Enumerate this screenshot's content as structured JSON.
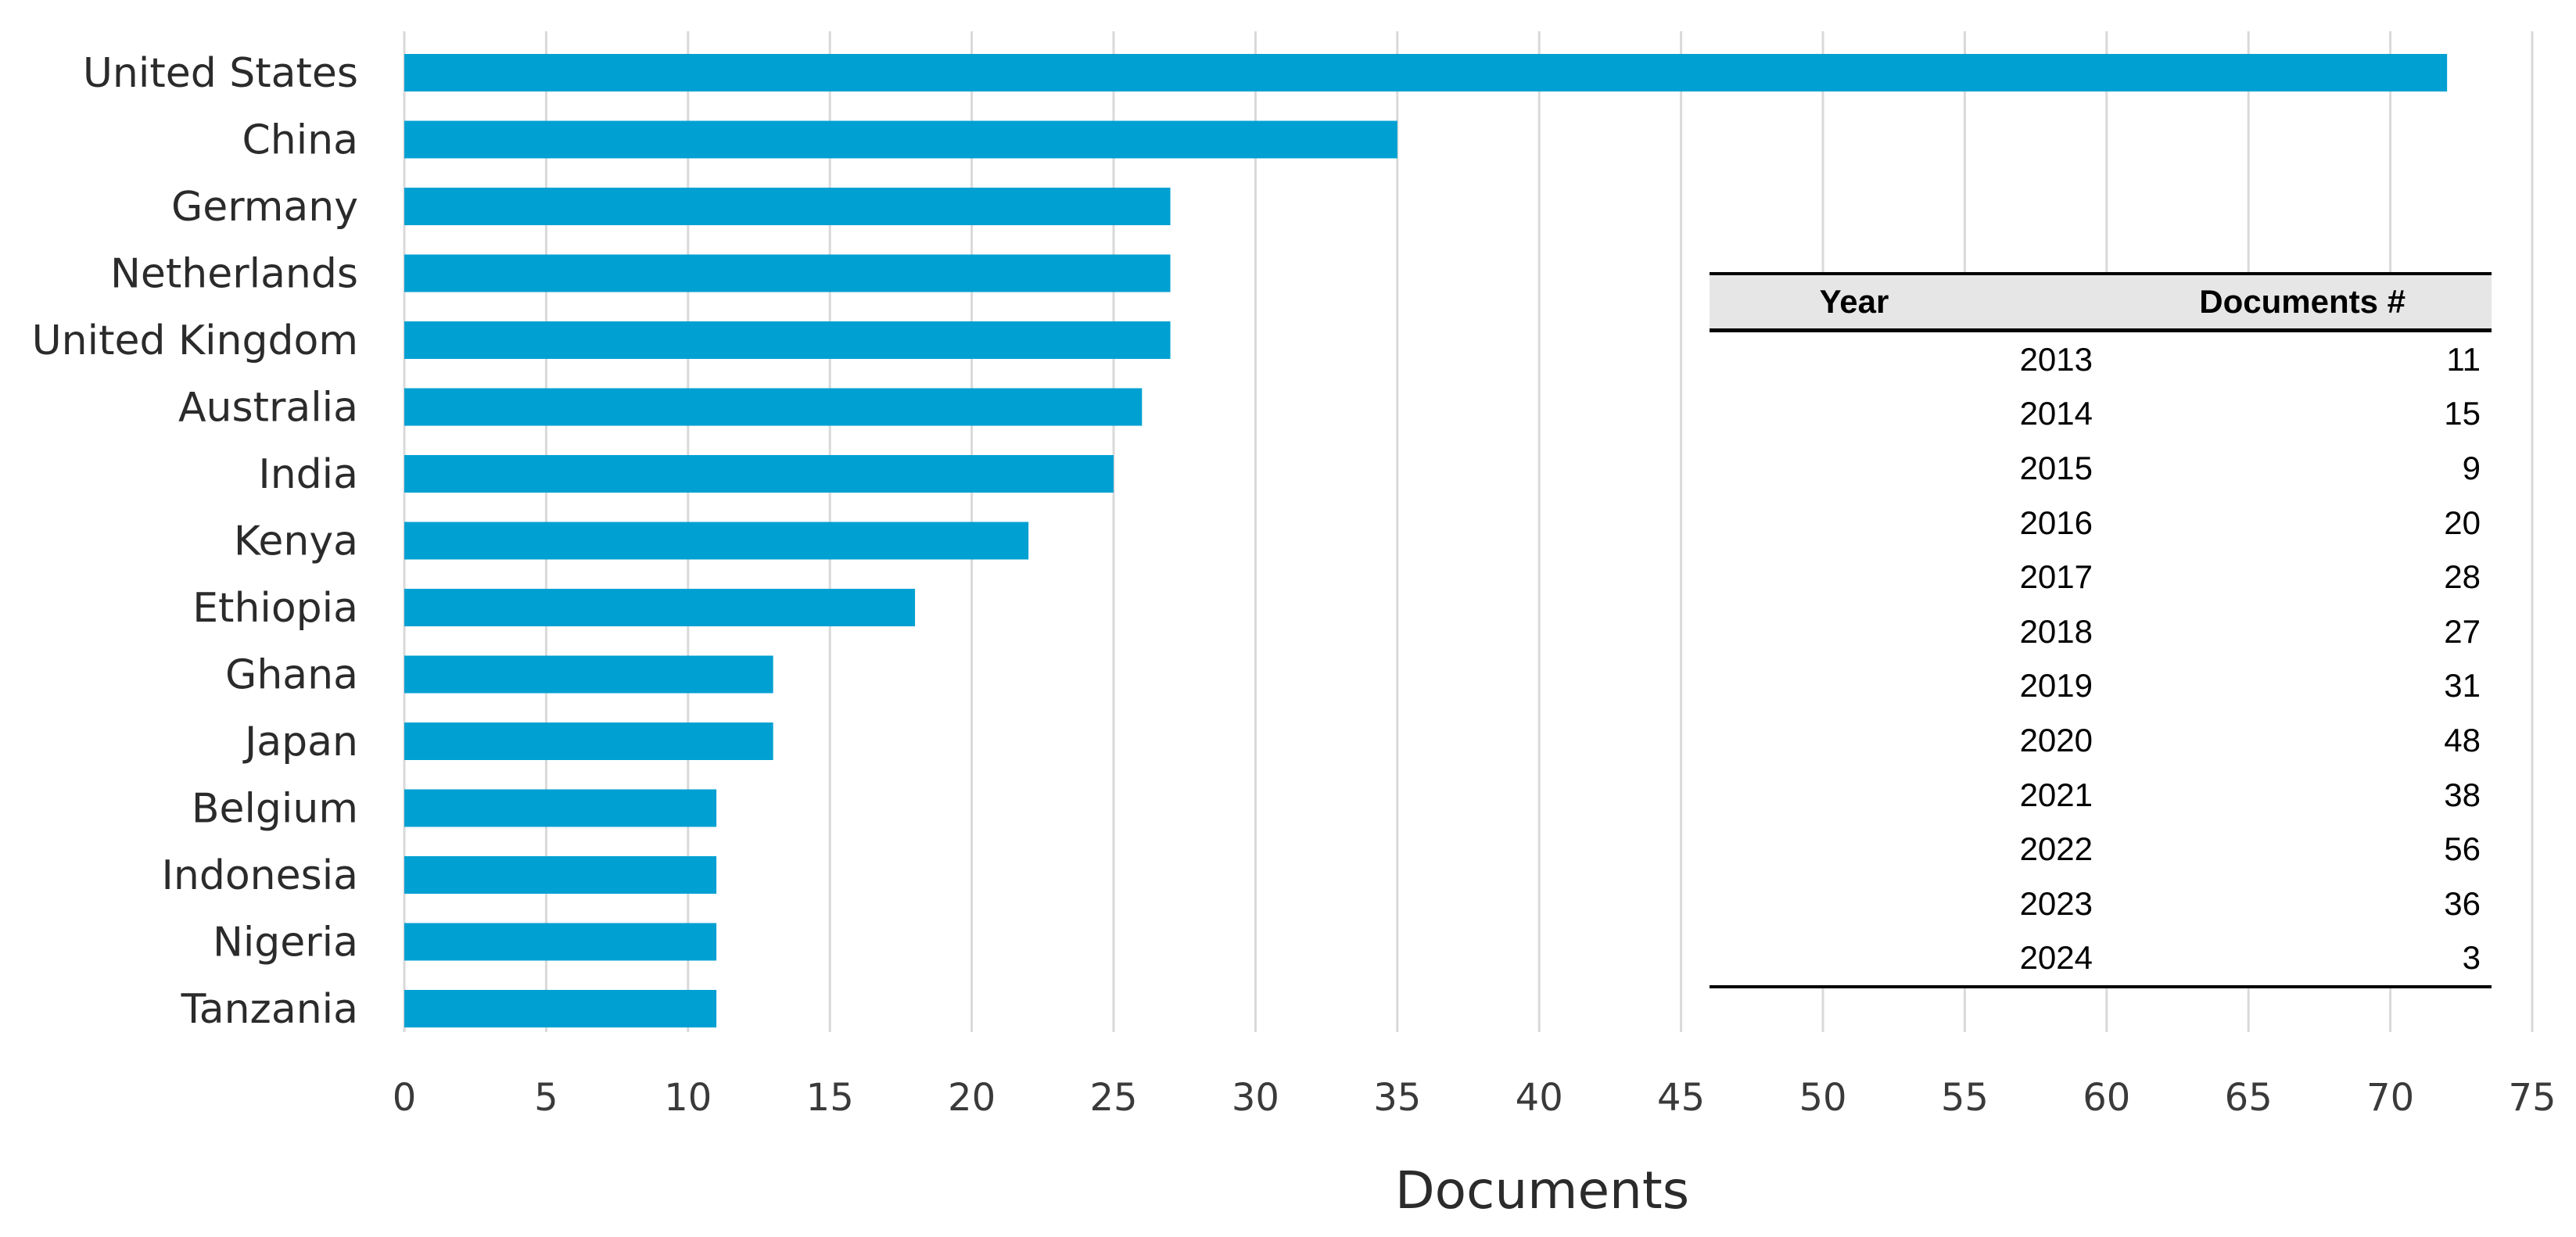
{
  "colors": {
    "bar": "#00A0D2",
    "grid": "#d9d9d9",
    "text": "#2b2b2b",
    "table_header_bg": "#e6e6e6"
  },
  "chart_data": {
    "type": "bar",
    "orientation": "horizontal",
    "categories": [
      "United States",
      "China",
      "Germany",
      "Netherlands",
      "United Kingdom",
      "Australia",
      "India",
      "Kenya",
      "Ethiopia",
      "Ghana",
      "Japan",
      "Belgium",
      "Indonesia",
      "Nigeria",
      "Tanzania"
    ],
    "values": [
      72,
      35,
      27,
      27,
      27,
      26,
      25,
      22,
      18,
      13,
      13,
      11,
      11,
      11,
      11
    ],
    "title": "",
    "xlabel": "Documents",
    "ylabel": "",
    "xlim": [
      0,
      75
    ],
    "xticks": [
      0,
      5,
      10,
      15,
      20,
      25,
      30,
      35,
      40,
      45,
      50,
      55,
      60,
      65,
      70,
      75
    ],
    "grid": "vertical"
  },
  "table": {
    "headers": [
      "Year",
      "Documents #"
    ],
    "rows": [
      [
        "2013",
        "11"
      ],
      [
        "2014",
        "15"
      ],
      [
        "2015",
        "9"
      ],
      [
        "2016",
        "20"
      ],
      [
        "2017",
        "28"
      ],
      [
        "2018",
        "27"
      ],
      [
        "2019",
        "31"
      ],
      [
        "2020",
        "48"
      ],
      [
        "2021",
        "38"
      ],
      [
        "2022",
        "56"
      ],
      [
        "2023",
        "36"
      ],
      [
        "2024",
        "3"
      ]
    ]
  }
}
